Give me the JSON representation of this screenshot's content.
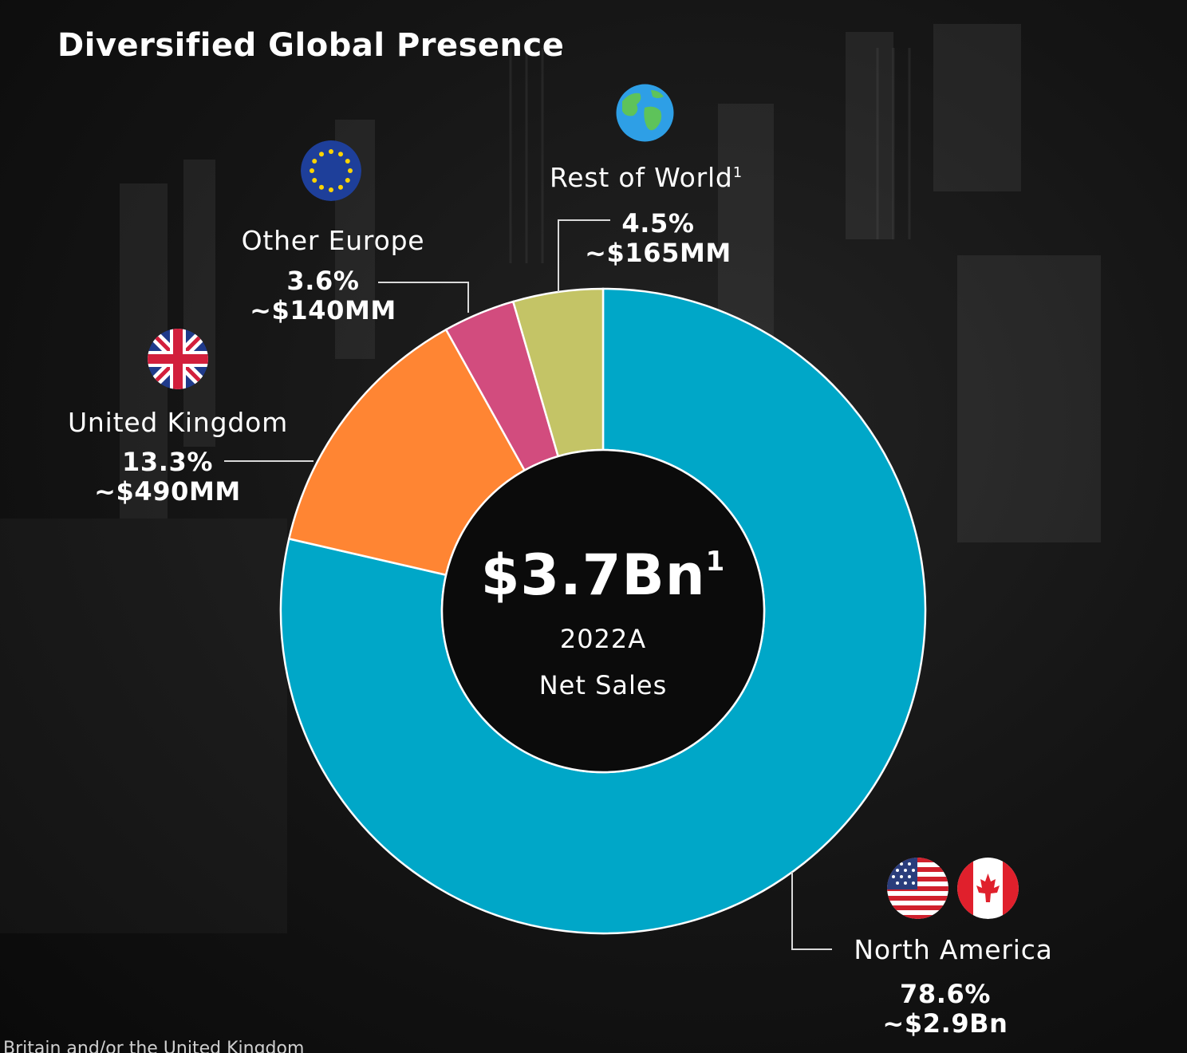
{
  "title": "Diversified Global Presence",
  "center": {
    "total": "$3.7Bn",
    "total_footnote": "1",
    "year": "2022A",
    "caption": "Net Sales"
  },
  "labels": {
    "north_america": {
      "name": "North America",
      "pct": "78.6%",
      "amount": "~$2.9Bn"
    },
    "united_kingdom": {
      "name": "United Kingdom",
      "pct": "13.3%",
      "amount": "~$490MM"
    },
    "other_europe": {
      "name": "Other Europe",
      "pct": "3.6%",
      "amount": "~$140MM"
    },
    "rest_of_world": {
      "name": "Rest of World",
      "footnote": "1",
      "pct": "4.5%",
      "amount": "~$165MM"
    }
  },
  "footer": "Britain and/or the United Kingdom",
  "chart_data": {
    "type": "pie",
    "donut": true,
    "title": "Diversified Global Presence",
    "categories": [
      "North America",
      "United Kingdom",
      "Other Europe",
      "Rest of World"
    ],
    "values": [
      78.6,
      13.3,
      3.6,
      4.5
    ],
    "amounts": [
      "~$2.9Bn",
      "~$490MM",
      "~$140MM",
      "~$165MM"
    ],
    "colors": [
      "#00a7c8",
      "#ff8533",
      "#d24c7e",
      "#c4c466"
    ],
    "center_text": "$3.7Bn",
    "center_subtext": [
      "2022A",
      "Net Sales"
    ]
  },
  "icons": {
    "north_america": [
      "us-flag-icon",
      "canada-flag-icon"
    ],
    "united_kingdom": "uk-flag-icon",
    "other_europe": "eu-flag-icon",
    "rest_of_world": "globe-icon"
  }
}
